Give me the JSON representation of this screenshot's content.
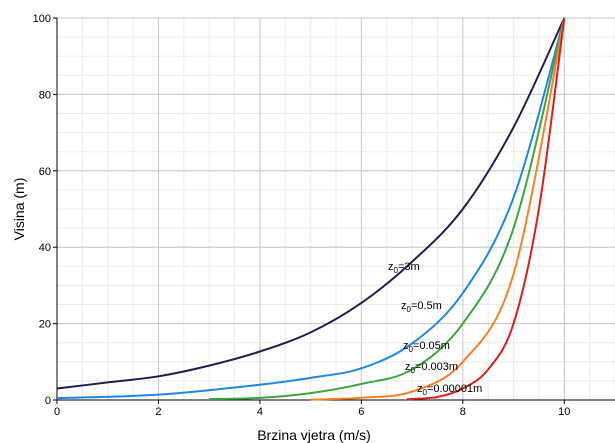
{
  "chart_data": {
    "type": "line",
    "xlabel": "Brzina vjetra (m/s)",
    "ylabel": "Visina (m)",
    "xlim": [
      0,
      11
    ],
    "ylim": [
      0,
      100
    ],
    "x_ticks": [
      0,
      2,
      4,
      6,
      8,
      10
    ],
    "y_ticks": [
      0,
      20,
      40,
      60,
      80,
      100
    ],
    "grid": true,
    "reference_speed": 10,
    "reference_height": 100,
    "series": [
      {
        "label": {
          "main": "z",
          "sub": "0",
          "rest": "=3m"
        },
        "z0": 3,
        "color": "#1f1f4d",
        "points": [
          [
            0,
            3
          ],
          [
            1,
            4.6
          ],
          [
            2,
            6.2
          ],
          [
            3,
            9
          ],
          [
            4,
            12.7
          ],
          [
            5,
            17.7
          ],
          [
            6,
            25.4
          ],
          [
            7,
            36.2
          ],
          [
            8,
            50
          ],
          [
            9,
            71.4
          ],
          [
            10,
            100
          ]
        ]
      },
      {
        "label": {
          "main": "z",
          "sub": "0",
          "rest": "=0.5m"
        },
        "z0": 0.5,
        "color": "#1e88e5",
        "points": [
          [
            0,
            0.5
          ],
          [
            2,
            1.4
          ],
          [
            4,
            4
          ],
          [
            5,
            5.8
          ],
          [
            6,
            8.3
          ],
          [
            7,
            14.8
          ],
          [
            8,
            28
          ],
          [
            9,
            53
          ],
          [
            10,
            100
          ]
        ]
      },
      {
        "label": {
          "main": "z",
          "sub": "0",
          "rest": "=0.05m"
        },
        "z0": 0.05,
        "color": "#3aa640",
        "points": [
          [
            3,
            0.25
          ],
          [
            4,
            0.55
          ],
          [
            5,
            1.8
          ],
          [
            6,
            4.2
          ],
          [
            7,
            8
          ],
          [
            8,
            20
          ],
          [
            9,
            45
          ],
          [
            10,
            100
          ]
        ]
      },
      {
        "label": {
          "main": "z",
          "sub": "0",
          "rest": "=0.003m"
        },
        "z0": 0.003,
        "color": "#ff7f27",
        "points": [
          [
            5,
            0.1
          ],
          [
            6,
            0.6
          ],
          [
            7,
            2.2
          ],
          [
            8,
            10
          ],
          [
            9,
            33
          ],
          [
            10,
            100
          ]
        ]
      },
      {
        "label": {
          "main": "z",
          "sub": "0",
          "rest": "=0.00001m"
        },
        "z0": 1e-05,
        "color": "#e01b1b",
        "points": [
          [
            6.9,
            0.2
          ],
          [
            7.5,
            0.8
          ],
          [
            8,
            3
          ],
          [
            8.5,
            8
          ],
          [
            9,
            20
          ],
          [
            9.5,
            50
          ],
          [
            10,
            100
          ]
        ]
      }
    ]
  }
}
